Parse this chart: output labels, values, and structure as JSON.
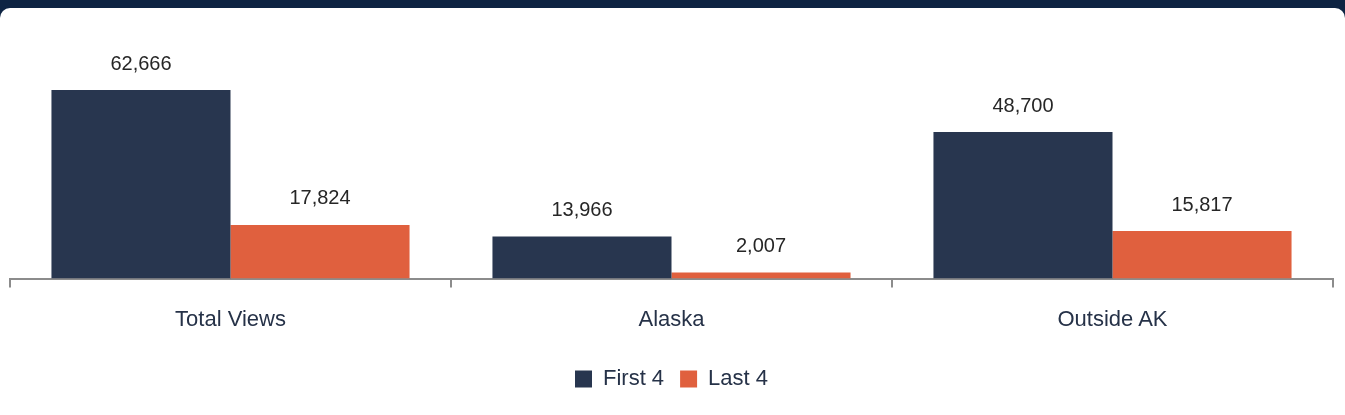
{
  "chart_data": {
    "type": "bar",
    "categories": [
      "Total Views",
      "Alaska",
      "Outside AK"
    ],
    "series": [
      {
        "name": "First 4",
        "color": "#28364f",
        "values": [
          62666,
          13966,
          48700
        ],
        "value_labels": [
          "62,666",
          "13,966",
          "48,700"
        ]
      },
      {
        "name": "Last 4",
        "color": "#e0603e",
        "values": [
          17824,
          2007,
          15817
        ],
        "value_labels": [
          "17,824",
          "2,007",
          "15,817"
        ]
      }
    ],
    "legend": "bottom",
    "tick_labels": "x"
  }
}
